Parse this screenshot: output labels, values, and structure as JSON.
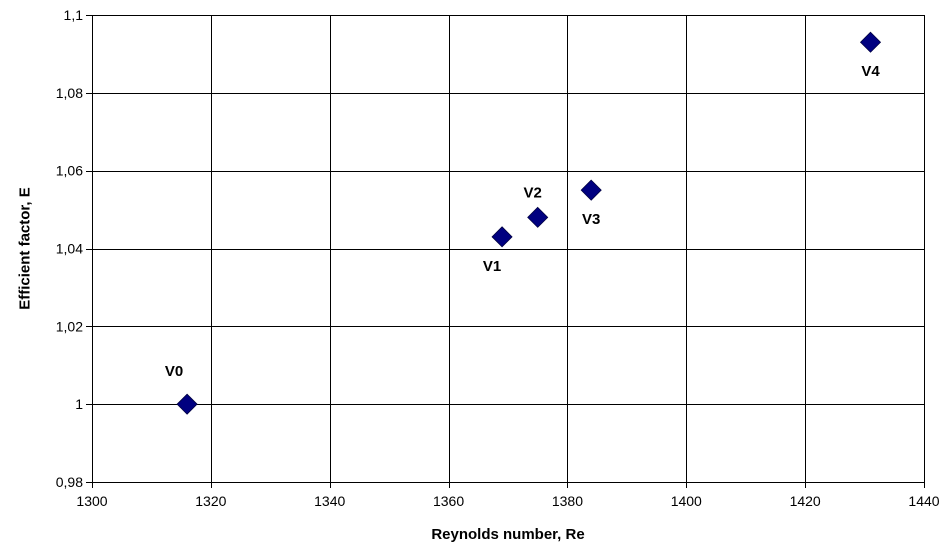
{
  "chart_data": {
    "type": "scatter",
    "title": "",
    "xlabel": "Reynolds number, Re",
    "ylabel": "Efficient factor, E",
    "xlim": [
      1300,
      1440
    ],
    "ylim": [
      0.98,
      1.1
    ],
    "x_ticks": [
      1300,
      1320,
      1340,
      1360,
      1380,
      1400,
      1420,
      1440
    ],
    "x_tick_labels": [
      "1300",
      "1320",
      "1340",
      "1360",
      "1380",
      "1400",
      "1420",
      "1440"
    ],
    "y_ticks": [
      0.98,
      1.0,
      1.02,
      1.04,
      1.06,
      1.08,
      1.1
    ],
    "y_tick_labels": [
      "0,98",
      "1",
      "1,02",
      "1,04",
      "1,06",
      "1,08",
      "1,1"
    ],
    "grid": true,
    "legend": "none",
    "marker": "diamond",
    "marker_color": "#000080",
    "series": [
      {
        "points": [
          {
            "label": "V0",
            "x": 1316,
            "y": 1.0,
            "label_pos": "above-left"
          },
          {
            "label": "V1",
            "x": 1369,
            "y": 1.043,
            "label_pos": "below-left"
          },
          {
            "label": "V2",
            "x": 1375,
            "y": 1.048,
            "label_pos": "above"
          },
          {
            "label": "V3",
            "x": 1384,
            "y": 1.055,
            "label_pos": "below"
          },
          {
            "label": "V4",
            "x": 1431,
            "y": 1.093,
            "label_pos": "below"
          }
        ]
      }
    ]
  }
}
